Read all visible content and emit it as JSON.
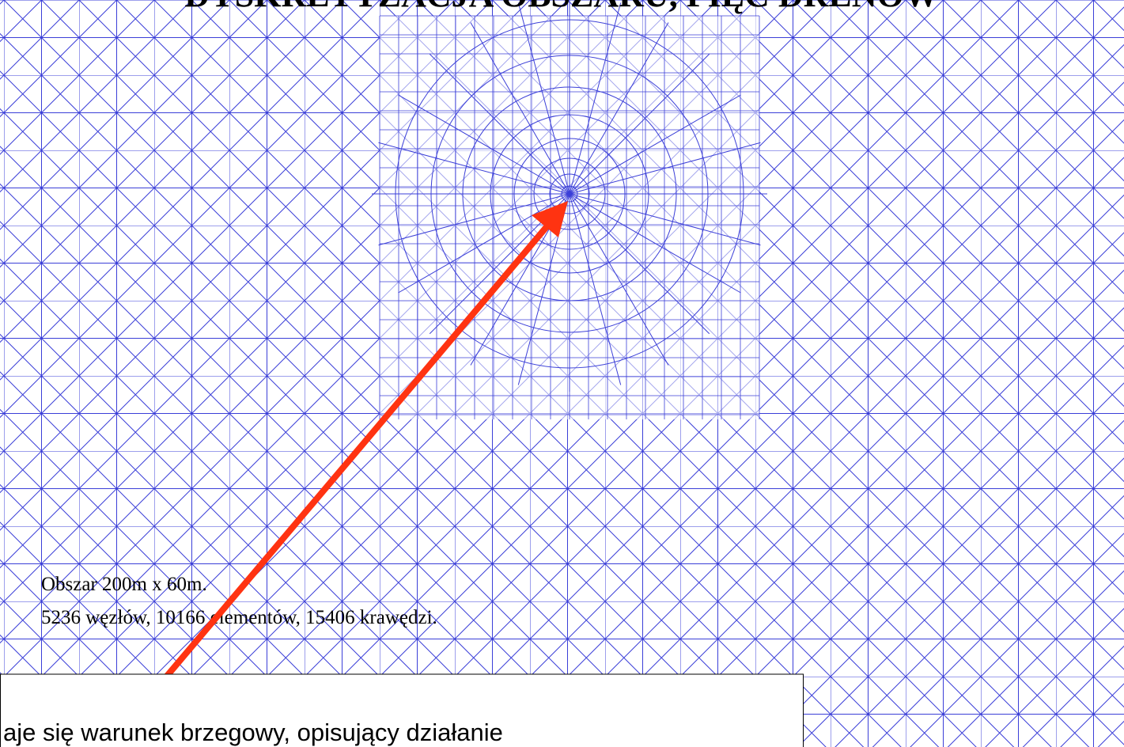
{
  "header": {
    "title": "DYSKRETYZACJA OBSZARU, PIĘĆ DRENÓW"
  },
  "mesh_info": {
    "line1": "Obszar 200m x 60m.",
    "line2": "5236 węzłów, 10166 elementów, 15406 krawędzi."
  },
  "caption": {
    "text": "aje się warunek brzegowy, opisujący działanie"
  }
}
